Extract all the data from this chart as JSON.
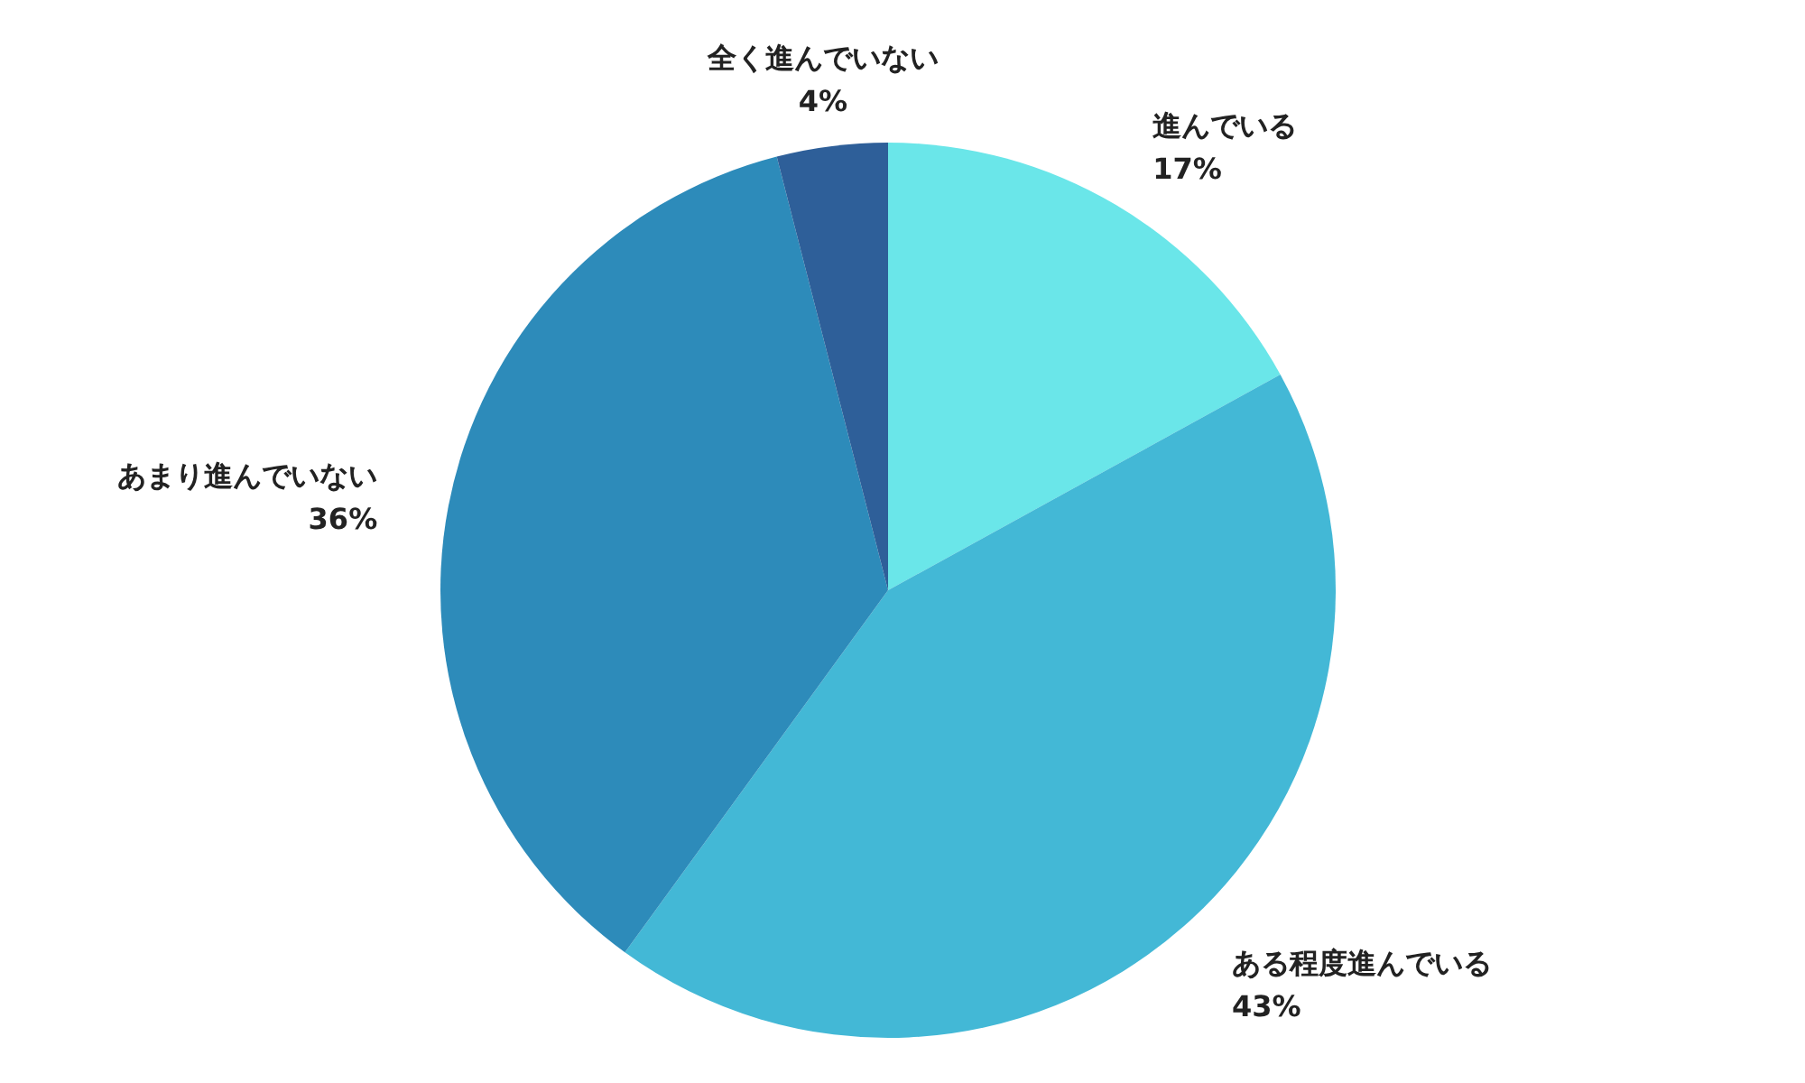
{
  "chart_data": {
    "type": "pie",
    "categories": [
      "進んでいる",
      "ある程度進んでいる",
      "あまり進んでいない",
      "全く進んでいない"
    ],
    "values": [
      17,
      43,
      36,
      4
    ],
    "colors": [
      "#6ae6e9",
      "#43b8d6",
      "#2d8bba",
      "#2e5f99"
    ],
    "value_labels": [
      "17%",
      "43%",
      "36%",
      "4%"
    ],
    "legend": false
  }
}
